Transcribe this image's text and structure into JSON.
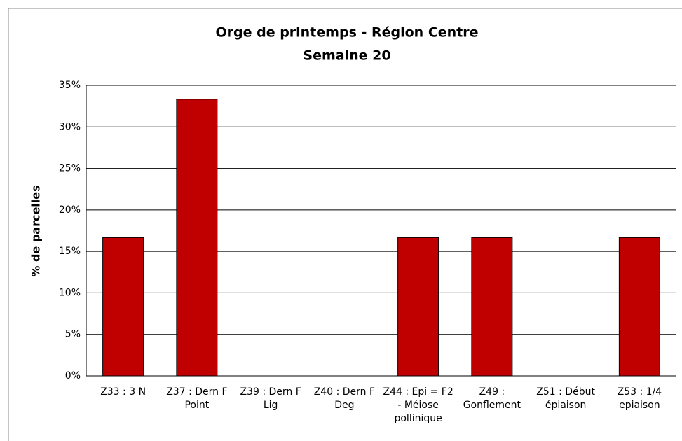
{
  "chart_data": {
    "type": "bar",
    "title": "Orge de printemps - Région Centre",
    "subtitle": "Semaine 20",
    "y_label": "% de parcelles",
    "categories": [
      "Z33 : 3 N",
      "Z37 : Dern F Point",
      "Z39 : Dern F Lig",
      "Z40 : Dern F Deg",
      "Z44 : Epi = F2 - Méiose pollinique",
      "Z49 : Gonflement",
      "Z51 : Début épiaison",
      "Z53 : 1/4 epiaison"
    ],
    "values": [
      16.67,
      33.33,
      0,
      0,
      16.67,
      16.67,
      0,
      16.67
    ],
    "color": "#c00000",
    "ylim": [
      0,
      35
    ],
    "yticks": [
      {
        "value": 0,
        "label": "0%"
      },
      {
        "value": 5,
        "label": "5%"
      },
      {
        "value": 10,
        "label": "10%"
      },
      {
        "value": 15,
        "label": "15%"
      },
      {
        "value": 20,
        "label": "20%"
      },
      {
        "value": 25,
        "label": "25%"
      },
      {
        "value": 30,
        "label": "30%"
      },
      {
        "value": 35,
        "label": "35%"
      }
    ],
    "grid": true
  }
}
